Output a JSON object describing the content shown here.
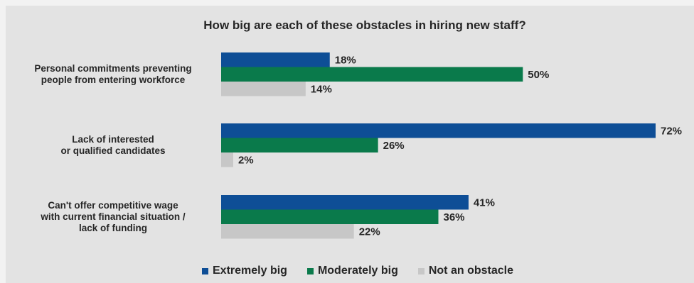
{
  "colors": {
    "extremely_big": "#0e4e96",
    "moderately_big": "#0a7a4b",
    "not_an_obstacle": "#c7c7c7"
  },
  "chart_data": {
    "type": "bar",
    "orientation": "horizontal",
    "title": "How big are each of these obstacles in hiring new staff?",
    "categories": [
      [
        "Personal commitments preventing",
        "people from entering workforce"
      ],
      [
        "Lack of interested",
        "or qualified candidates"
      ],
      [
        "Can't offer competitive wage",
        "with current financial situation /",
        "lack of funding"
      ]
    ],
    "series": [
      {
        "name": "Extremely big",
        "values": [
          18,
          72,
          41
        ],
        "labels": [
          "18%",
          "72%",
          "41%"
        ]
      },
      {
        "name": "Moderately big",
        "values": [
          50,
          26,
          36
        ],
        "labels": [
          "50%",
          "26%",
          "36%"
        ]
      },
      {
        "name": "Not an obstacle",
        "values": [
          14,
          2,
          22
        ],
        "labels": [
          "14%",
          "2%",
          "22%"
        ]
      }
    ],
    "xlim": [
      0,
      72
    ],
    "grid": false,
    "legend_position": "bottom"
  }
}
